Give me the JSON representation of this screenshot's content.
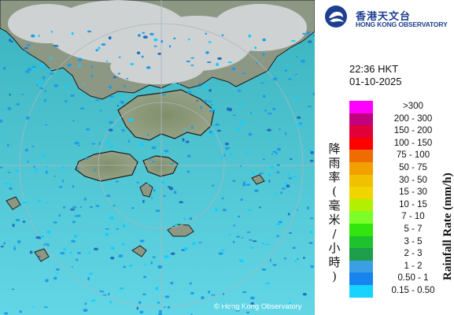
{
  "map": {
    "copyright": "© Hong Kong Observatory",
    "colors": {
      "sea_top": "#3db9c2",
      "sea_bottom": "#5fd5e4",
      "land": "#8a9a7c",
      "cloud": "#d8dadd",
      "rain_light": "#1e9ee6",
      "rain_lightest": "#0fd0ff",
      "ring": "#9eb3bd",
      "coast": "#1b1b1b"
    }
  },
  "header": {
    "logo_icon": "hko-emblem-icon",
    "logo_zh": "香港天文台",
    "logo_en": "HONG KONG OBSERVATORY"
  },
  "time": "22:36 HKT",
  "date": "01-10-2025",
  "legend": {
    "title_zh": "降雨率(毫米/小時)",
    "title_en": "Rainfall Rate (mm/h)",
    "items": [
      {
        "label": ">300",
        "color": "#ff00ff"
      },
      {
        "label": "200 - 300",
        "color": "#c0007e"
      },
      {
        "label": "150 - 200",
        "color": "#e2003a"
      },
      {
        "label": "100 - 150",
        "color": "#fe0000"
      },
      {
        "label": "75 - 100",
        "color": "#f06b00"
      },
      {
        "label": "50 - 75",
        "color": "#f1a000"
      },
      {
        "label": "30 - 50",
        "color": "#f1c000"
      },
      {
        "label": "15 - 30",
        "color": "#f1d500"
      },
      {
        "label": "10 - 15",
        "color": "#b3ef00"
      },
      {
        "label": "7 - 10",
        "color": "#7cfe2a"
      },
      {
        "label": "5 - 7",
        "color": "#32e60d"
      },
      {
        "label": "3 - 5",
        "color": "#1dc22e"
      },
      {
        "label": "2 - 3",
        "color": "#1c9e4a"
      },
      {
        "label": "1 - 2",
        "color": "#3c9fe6"
      },
      {
        "label": "0.50 - 1",
        "color": "#1884ee"
      },
      {
        "label": "0.15 - 0.50",
        "color": "#17d4fe"
      }
    ]
  }
}
